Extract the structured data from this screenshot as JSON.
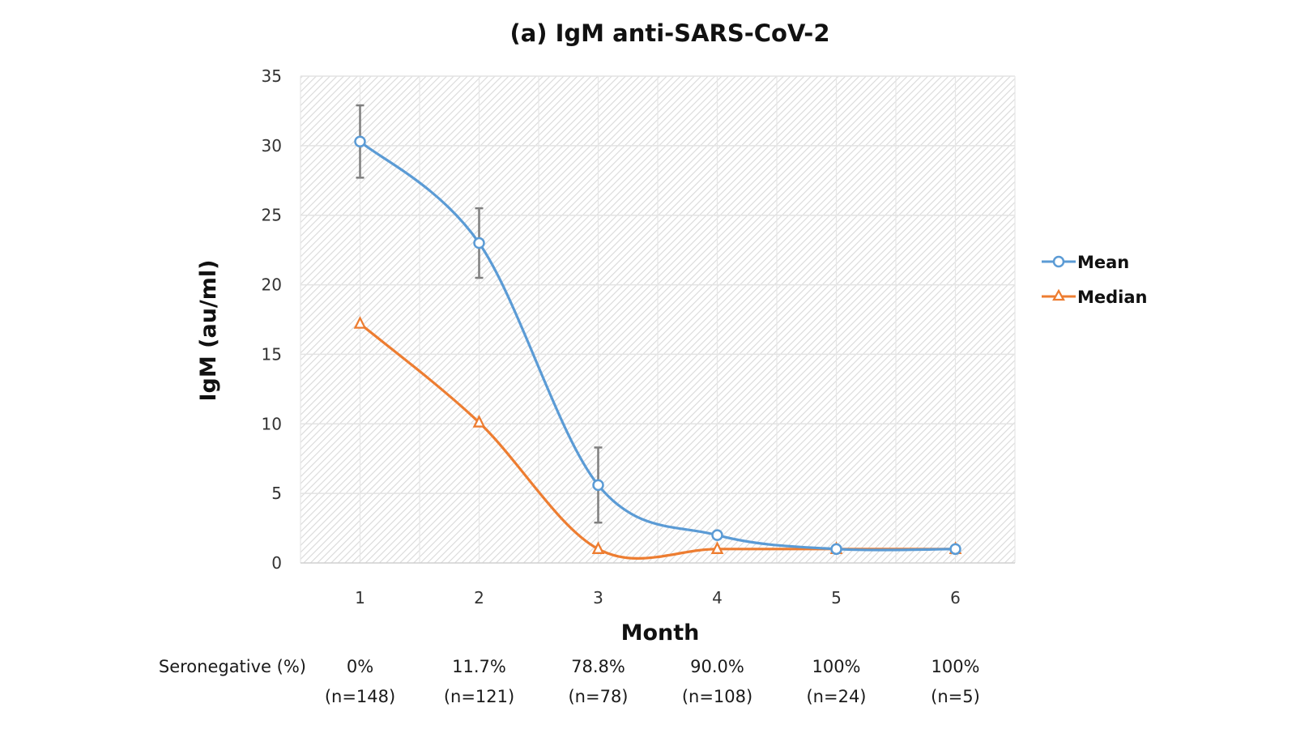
{
  "chart_data": {
    "type": "line",
    "title": "(a) IgM anti-SARS-CoV-2",
    "xlabel": "Month",
    "ylabel": "IgM (au/ml)",
    "categories": [
      "1",
      "2",
      "3",
      "4",
      "5",
      "6"
    ],
    "ylim": [
      0,
      35
    ],
    "yticks": [
      0,
      5,
      10,
      15,
      20,
      25,
      30,
      35
    ],
    "grid": true,
    "smoothed": true,
    "legend_position": "right",
    "series": [
      {
        "name": "Mean",
        "color": "#5B9BD5",
        "marker": "circle",
        "values": [
          30.3,
          23.0,
          5.6,
          2.0,
          1.0,
          1.0
        ],
        "error": [
          2.6,
          2.5,
          2.7,
          null,
          null,
          null
        ]
      },
      {
        "name": "Median",
        "color": "#ED7D31",
        "marker": "triangle",
        "values": [
          17.2,
          10.1,
          1.0,
          1.0,
          1.0,
          1.0
        ]
      }
    ],
    "error_bar_color": "#7F7F7F",
    "annotation_row": {
      "label": "Seronegative (%)",
      "percent": [
        "0%",
        "11.7%",
        "78.8%",
        "90.0%",
        "100%",
        "100%"
      ],
      "n": [
        "(n=148)",
        "(n=121)",
        "(n=78)",
        "(n=108)",
        "(n=24)",
        "(n=5)"
      ]
    }
  }
}
